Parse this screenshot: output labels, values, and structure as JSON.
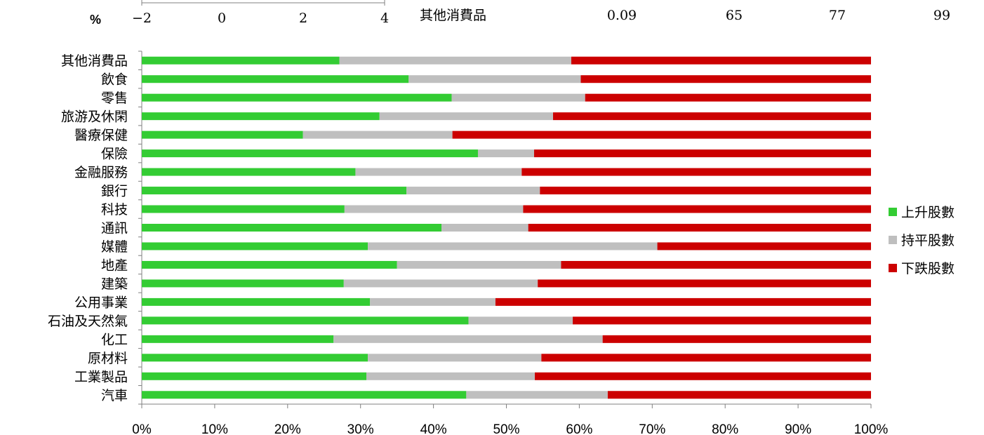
{
  "top_axis": {
    "unit": "%",
    "ticks": [
      "−2",
      "0",
      "2",
      "4"
    ]
  },
  "top_row": {
    "label": "其他消費品",
    "values": [
      "0.09",
      "65",
      "77",
      "99"
    ]
  },
  "chart_data": {
    "type": "bar",
    "orientation": "horizontal",
    "stacked": true,
    "percent_stacked": true,
    "categories": [
      "其他消費品",
      "飲食",
      "零售",
      "旅游及休閑",
      "醫療保健",
      "保險",
      "金融服務",
      "銀行",
      "科技",
      "通訊",
      "媒體",
      "地產",
      "建築",
      "公用事業",
      "石油及天然氣",
      "化工",
      "原材料",
      "工業製品",
      "汽車"
    ],
    "series": [
      {
        "name": "上升股數",
        "color": "#33cc33",
        "values": [
          27.1,
          36.6,
          42.5,
          32.6,
          22.1,
          46.1,
          29.3,
          36.3,
          27.8,
          41.1,
          31.0,
          35.0,
          27.7,
          31.3,
          44.8,
          26.3,
          31.0,
          30.8,
          44.5
        ]
      },
      {
        "name": "持平股數",
        "color": "#bfbfbf",
        "values": [
          31.8,
          23.6,
          18.3,
          23.8,
          20.5,
          7.7,
          22.8,
          18.3,
          24.5,
          11.9,
          39.7,
          22.5,
          26.6,
          17.2,
          14.3,
          36.9,
          23.8,
          23.1,
          19.4
        ]
      },
      {
        "name": "下跌股數",
        "color": "#cc0000",
        "values": [
          41.1,
          39.8,
          39.2,
          43.6,
          57.4,
          46.2,
          47.9,
          45.4,
          47.7,
          47.0,
          29.3,
          42.5,
          45.7,
          51.5,
          40.9,
          36.8,
          45.2,
          46.1,
          36.1
        ]
      }
    ],
    "x_ticks": [
      "0%",
      "10%",
      "20%",
      "30%",
      "40%",
      "50%",
      "60%",
      "70%",
      "80%",
      "90%",
      "100%"
    ],
    "xlim": [
      0,
      100
    ],
    "legend_position": "right"
  }
}
